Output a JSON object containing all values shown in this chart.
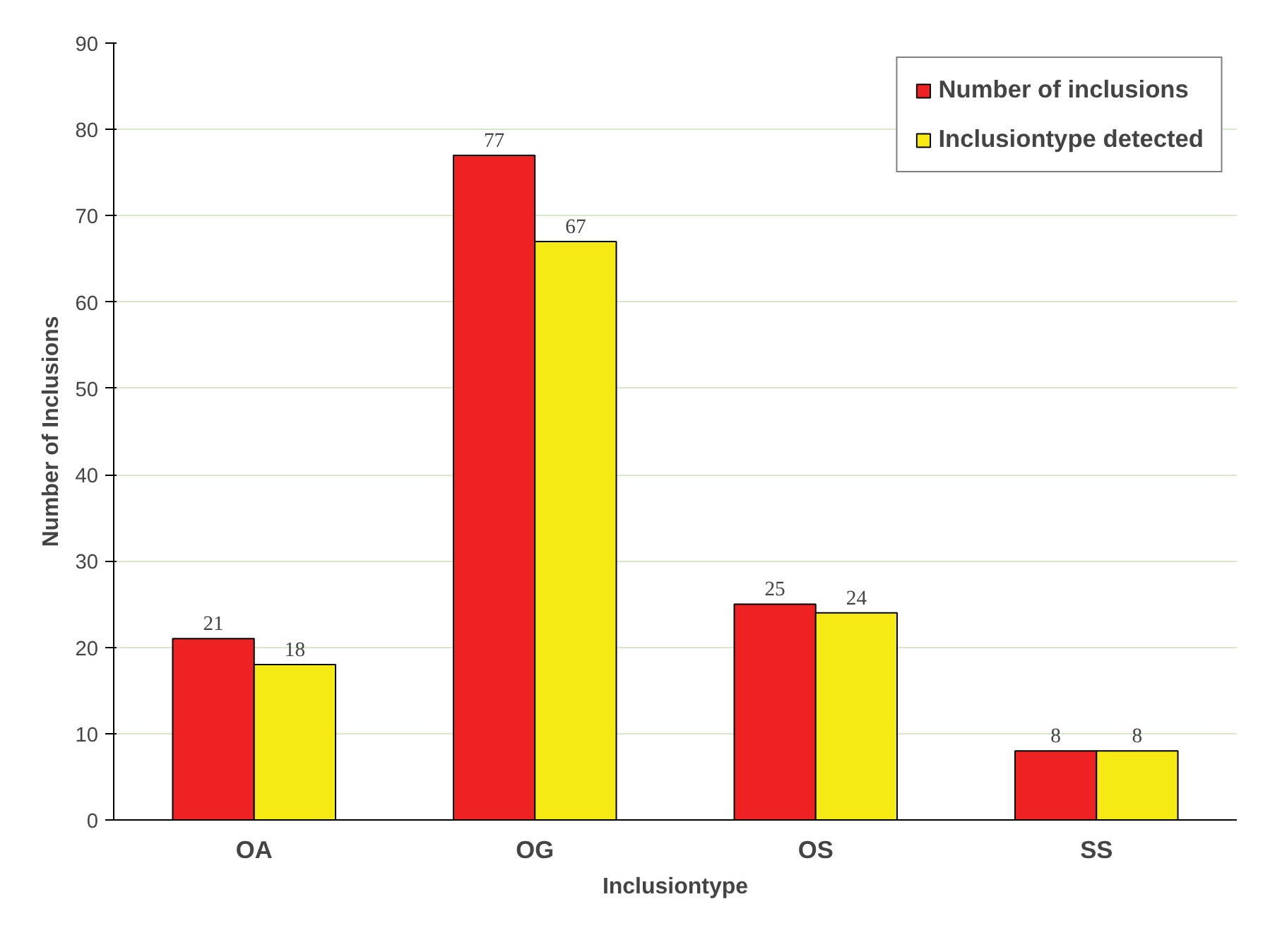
{
  "chart_data": {
    "type": "bar",
    "xlabel": "Inclusiontype",
    "ylabel": "Number of Inclusions",
    "categories": [
      "OA",
      "OG",
      "OS",
      "SS"
    ],
    "series": [
      {
        "name": "Number of inclusions",
        "color": "#ee2222",
        "values": [
          21,
          77,
          25,
          8
        ]
      },
      {
        "name": "Inclusiontype detected",
        "color": "#f5ea14",
        "values": [
          18,
          67,
          24,
          8
        ]
      }
    ],
    "ylim": [
      0,
      90
    ],
    "yticks": [
      0,
      10,
      20,
      30,
      40,
      50,
      60,
      70,
      80,
      90
    ],
    "grid": "y",
    "legend": "top right",
    "data_labels": true
  }
}
